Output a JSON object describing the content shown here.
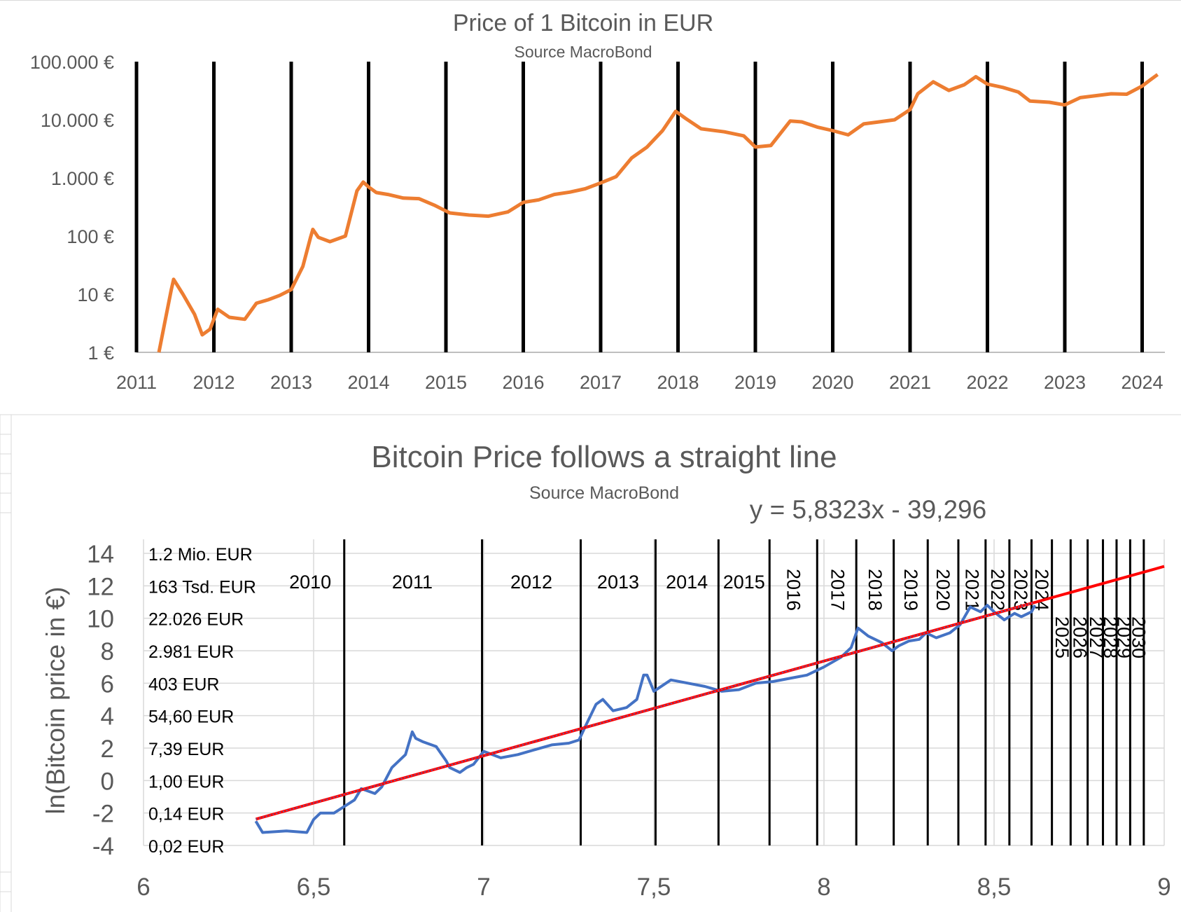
{
  "chart_data": [
    {
      "type": "line",
      "title": "Price of 1 Bitcoin in EUR",
      "subtitle": "Source MacroBond",
      "xlabel": "",
      "ylabel": "",
      "y_scale": "log",
      "ylim": [
        1,
        100000
      ],
      "xlim": [
        2011,
        2024.2
      ],
      "y_ticks": [
        1,
        10,
        100,
        1000,
        10000,
        100000
      ],
      "y_tick_labels": [
        "1 €",
        "10 €",
        "100 €",
        "1.000 €",
        "10.000 €",
        "100.000 €"
      ],
      "x_tick_labels": [
        "2011",
        "2012",
        "2013",
        "2014",
        "2015",
        "2016",
        "2017",
        "2018",
        "2019",
        "2020",
        "2021",
        "2022",
        "2023",
        "2024"
      ],
      "year_lines": [
        2011,
        2012,
        2013,
        2014,
        2015,
        2016,
        2017,
        2018,
        2019,
        2020,
        2021,
        2022,
        2023,
        2024
      ],
      "series": [
        {
          "color": "#ED7D31",
          "x": [
            2011.29,
            2011.36,
            2011.45,
            2011.48,
            2011.6,
            2011.75,
            2011.85,
            2011.95,
            2012.05,
            2012.2,
            2012.4,
            2012.55,
            2012.7,
            2012.85,
            2013.0,
            2013.15,
            2013.25,
            2013.28,
            2013.35,
            2013.5,
            2013.7,
            2013.85,
            2013.93,
            2014.0,
            2014.1,
            2014.25,
            2014.45,
            2014.65,
            2014.85,
            2015.05,
            2015.3,
            2015.55,
            2015.8,
            2016.0,
            2016.2,
            2016.4,
            2016.6,
            2016.8,
            2017.0,
            2017.2,
            2017.4,
            2017.6,
            2017.8,
            2017.97,
            2018.1,
            2018.3,
            2018.6,
            2018.85,
            2019.0,
            2019.2,
            2019.45,
            2019.6,
            2019.8,
            2020.0,
            2020.2,
            2020.4,
            2020.6,
            2020.8,
            2021.0,
            2021.1,
            2021.3,
            2021.5,
            2021.7,
            2021.85,
            2022.0,
            2022.2,
            2022.4,
            2022.55,
            2022.8,
            2023.0,
            2023.2,
            2023.4,
            2023.6,
            2023.8,
            2024.0,
            2024.1,
            2024.2
          ],
          "values": [
            1,
            3,
            12,
            18,
            10,
            4.5,
            2,
            2.5,
            5.5,
            4,
            3.7,
            7,
            8,
            9.5,
            12,
            30,
            95,
            130,
            95,
            80,
            100,
            600,
            850,
            700,
            560,
            520,
            450,
            440,
            340,
            250,
            230,
            220,
            260,
            380,
            420,
            520,
            570,
            650,
            820,
            1050,
            2200,
            3400,
            6500,
            14000,
            10500,
            7000,
            6200,
            5300,
            3400,
            3600,
            9500,
            9200,
            7500,
            6500,
            5500,
            8500,
            9200,
            10000,
            15000,
            28000,
            45000,
            32000,
            40000,
            55000,
            41000,
            36000,
            30000,
            21000,
            20000,
            18000,
            24000,
            26000,
            28000,
            27500,
            38000,
            48000,
            60000
          ]
        }
      ]
    },
    {
      "type": "line",
      "title": "Bitcoin Price follows a straight line",
      "subtitle": "Source MacroBond",
      "annotation": "y = 5,8323x - 39,296",
      "ylabel": "ln(Bitcoin price in €)",
      "xlabel": "",
      "xlim": [
        6,
        9
      ],
      "ylim": [
        -4,
        14
      ],
      "x_ticks": [
        6,
        6.5,
        7,
        7.5,
        8,
        8.5,
        9
      ],
      "x_tick_labels": [
        "6",
        "6,5",
        "7",
        "7,5",
        "8",
        "8,5",
        "9"
      ],
      "y_ticks": [
        -4,
        -2,
        0,
        2,
        4,
        6,
        8,
        10,
        12,
        14
      ],
      "y_tick_labels": [
        "-4",
        "-2",
        "0",
        "2",
        "4",
        "6",
        "8",
        "10",
        "12",
        "14"
      ],
      "grid": true,
      "eur_labels": [
        {
          "y": -4,
          "text": "0,02 EUR"
        },
        {
          "y": -2,
          "text": "0,14 EUR"
        },
        {
          "y": 0,
          "text": "1,00 EUR"
        },
        {
          "y": 2,
          "text": "7,39 EUR"
        },
        {
          "y": 4,
          "text": "54,60 EUR"
        },
        {
          "y": 6,
          "text": "403 EUR"
        },
        {
          "y": 8,
          "text": "2.981 EUR"
        },
        {
          "y": 10,
          "text": "22.026 EUR"
        },
        {
          "y": 12,
          "text": "163 Tsd. EUR"
        },
        {
          "y": 14,
          "text": "1.2 Mio. EUR"
        }
      ],
      "year_lines": [
        6.59,
        6.995,
        7.285,
        7.505,
        7.69,
        7.84,
        7.98,
        8.095,
        8.205,
        8.305,
        8.395,
        8.475,
        8.545,
        8.61,
        8.67,
        8.725,
        8.775,
        8.82,
        8.86,
        8.9,
        8.94
      ],
      "year_labels": [
        {
          "text": "2010",
          "x": 6.49,
          "rotated": false
        },
        {
          "text": "2011",
          "x": 6.79,
          "rotated": false
        },
        {
          "text": "2012",
          "x": 7.14,
          "rotated": false
        },
        {
          "text": "2013",
          "x": 7.395,
          "rotated": false
        },
        {
          "text": "2014",
          "x": 7.597,
          "rotated": false
        },
        {
          "text": "2015",
          "x": 7.765,
          "rotated": false
        },
        {
          "text": "2016",
          "x": 7.91,
          "rotated": true
        },
        {
          "text": "2017",
          "x": 8.04,
          "rotated": true
        },
        {
          "text": "2018",
          "x": 8.15,
          "rotated": true
        },
        {
          "text": "2019",
          "x": 8.255,
          "rotated": true
        },
        {
          "text": "2020",
          "x": 8.35,
          "rotated": true
        },
        {
          "text": "2021",
          "x": 8.435,
          "rotated": true
        },
        {
          "text": "2022",
          "x": 8.51,
          "rotated": true
        },
        {
          "text": "2023",
          "x": 8.578,
          "rotated": true
        },
        {
          "text": "2024",
          "x": 8.64,
          "rotated": true
        },
        {
          "text": "2025",
          "x": 8.7,
          "rotated": true
        },
        {
          "text": "2026",
          "x": 8.752,
          "rotated": true
        },
        {
          "text": "2027",
          "x": 8.8,
          "rotated": true
        },
        {
          "text": "2028",
          "x": 8.842,
          "rotated": true
        },
        {
          "text": "2029",
          "x": 8.882,
          "rotated": true
        },
        {
          "text": "2030",
          "x": 8.925,
          "rotated": true
        }
      ],
      "series": [
        {
          "color": "#4472C4",
          "x": [
            6.33,
            6.35,
            6.42,
            6.48,
            6.5,
            6.52,
            6.56,
            6.62,
            6.64,
            6.68,
            6.7,
            6.73,
            6.77,
            6.79,
            6.8,
            6.82,
            6.86,
            6.89,
            6.9,
            6.93,
            6.95,
            6.97,
            7.0,
            7.05,
            7.1,
            7.15,
            7.2,
            7.25,
            7.28,
            7.3,
            7.33,
            7.35,
            7.38,
            7.42,
            7.45,
            7.47,
            7.48,
            7.5,
            7.55,
            7.6,
            7.65,
            7.7,
            7.75,
            7.8,
            7.85,
            7.9,
            7.95,
            8.0,
            8.05,
            8.08,
            8.1,
            8.13,
            8.17,
            8.2,
            8.22,
            8.25,
            8.28,
            8.3,
            8.33,
            8.37,
            8.4,
            8.43,
            8.46,
            8.48,
            8.5,
            8.53,
            8.56,
            8.58,
            8.61,
            8.62
          ],
          "values": [
            -2.5,
            -3.2,
            -3.1,
            -3.2,
            -2.4,
            -2,
            -2,
            -1.2,
            -0.5,
            -0.8,
            -0.4,
            0.8,
            1.6,
            3,
            2.6,
            2.4,
            2.1,
            1.2,
            0.8,
            0.5,
            0.8,
            1,
            1.8,
            1.4,
            1.6,
            1.9,
            2.2,
            2.3,
            2.5,
            3.4,
            4.7,
            5,
            4.3,
            4.5,
            5,
            6.5,
            6.5,
            5.5,
            6.2,
            6,
            5.8,
            5.5,
            5.6,
            6,
            6.1,
            6.3,
            6.5,
            7,
            7.6,
            8.2,
            9.4,
            8.9,
            8.5,
            8,
            8.3,
            8.6,
            8.7,
            9.1,
            8.8,
            9.1,
            9.6,
            10.7,
            10.4,
            10.8,
            10.4,
            9.9,
            10.3,
            10.1,
            10.4,
            10.8
          ]
        },
        {
          "color": "#FF0000",
          "name": "y = 5,8323x - 39,296",
          "x": [
            6.33,
            9.0
          ],
          "values": [
            -2.377,
            13.195
          ]
        }
      ]
    }
  ]
}
